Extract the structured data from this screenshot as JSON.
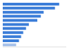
{
  "chart_data": {
    "type": "bar",
    "orientation": "horizontal",
    "categories": [
      null,
      null,
      null,
      null,
      null,
      null,
      null,
      null,
      null,
      null,
      null
    ],
    "values": [
      80,
      74,
      58,
      54,
      49,
      37,
      33,
      29,
      26,
      23,
      19
    ],
    "colors": [
      "#3b7dd8",
      "#3b7dd8",
      "#3b7dd8",
      "#3b7dd8",
      "#3b7dd8",
      "#3b7dd8",
      "#3b7dd8",
      "#3b7dd8",
      "#3b7dd8",
      "#3b7dd8",
      "#a9c3ea"
    ],
    "xlim": [
      0,
      90
    ],
    "tick_labels": false,
    "grid": false
  }
}
